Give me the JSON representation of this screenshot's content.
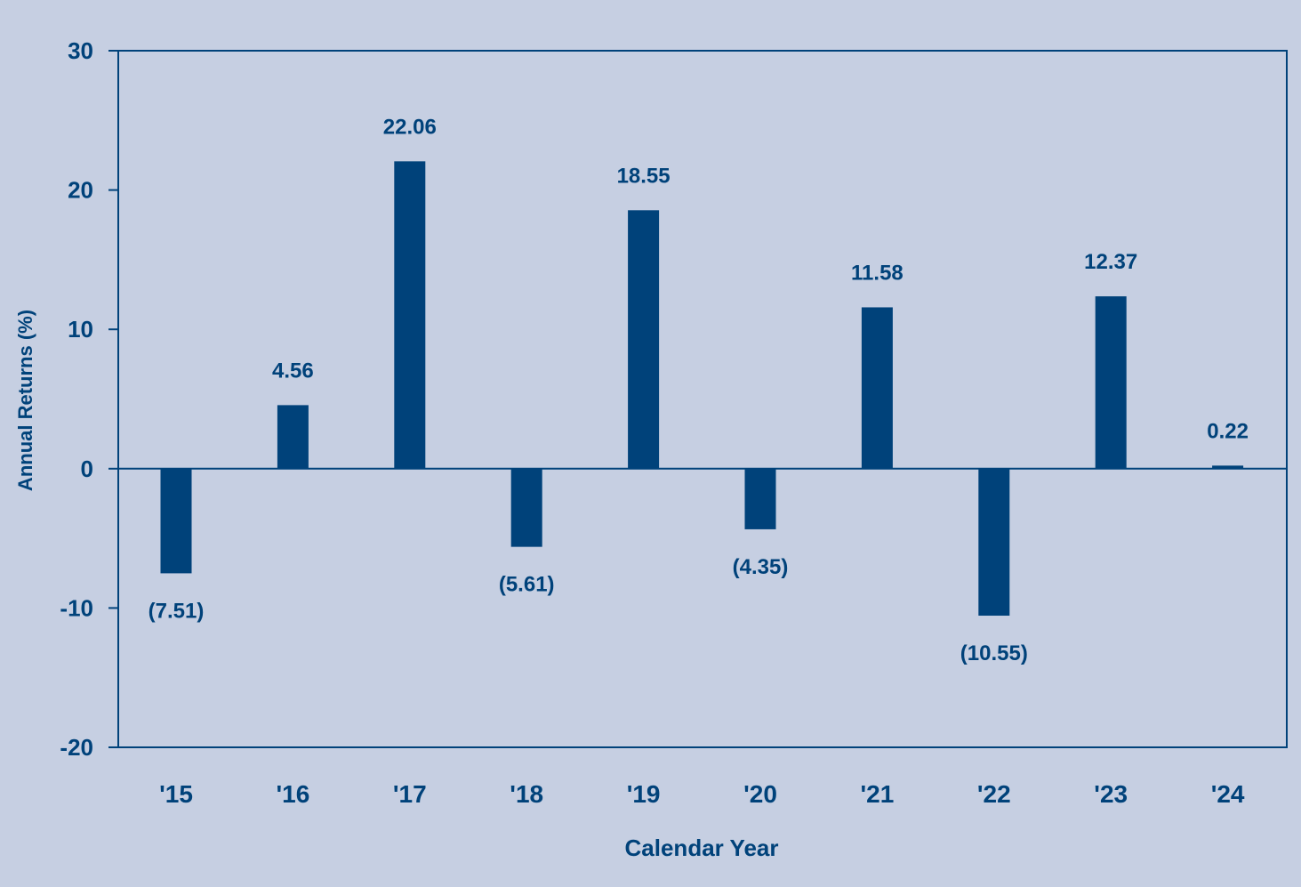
{
  "colors": {
    "background": "#c6cfe2",
    "bar": "#00427a",
    "text": "#00427a",
    "axis": "#00427a"
  },
  "chart_data": {
    "type": "bar",
    "xlabel": "Calendar Year",
    "ylabel": "Annual Returns (%)",
    "ylim": [
      -20,
      30
    ],
    "yticks": [
      30,
      20,
      10,
      0,
      -10,
      -20
    ],
    "grid": false,
    "categories": [
      "'15",
      "'16",
      "'17",
      "'18",
      "'19",
      "'20",
      "'21",
      "'22",
      "'23",
      "'24"
    ],
    "values": [
      -7.51,
      4.56,
      22.06,
      -5.61,
      18.55,
      -4.35,
      11.58,
      -10.55,
      12.37,
      0.22
    ],
    "data_labels": [
      "(7.51)",
      "4.56",
      "22.06",
      "(5.61)",
      "18.55",
      "(4.35)",
      "11.58",
      "(10.55)",
      "12.37",
      "0.22"
    ]
  }
}
